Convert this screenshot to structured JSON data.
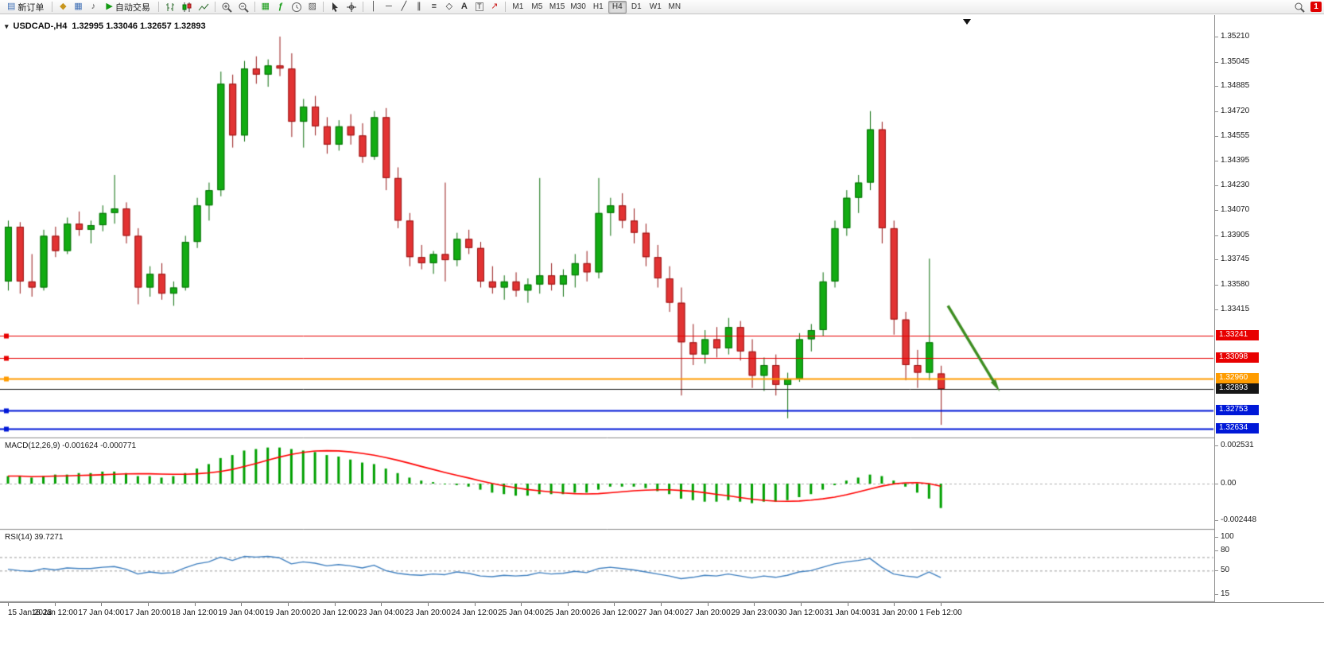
{
  "toolbar": {
    "new_order_label": "新订单",
    "autotrade_label": "自动交易",
    "timeframes": [
      "M1",
      "M5",
      "M15",
      "M30",
      "H1",
      "H4",
      "D1",
      "W1",
      "MN"
    ],
    "active_timeframe": "H4",
    "notification_count": "1",
    "icon_glyphs": {
      "new_order": "▤",
      "charts": "◆",
      "terminal": "▦",
      "news": "♪",
      "autotrade_play": "▶",
      "tile_windows": "▦",
      "indicators": "ƒ",
      "templates": "▨",
      "vertical_line": "│",
      "horizontal_line": "─",
      "trendline": "╱",
      "channel": "∥",
      "fibonacci": "≡",
      "shapes": "◇",
      "text": "A",
      "label": "T",
      "arrow_tool": "↗"
    }
  },
  "chart": {
    "symbol_period": "USDCAD-,H4",
    "ohlc": "1.32995 1.33046 1.32657 1.32893",
    "price_axis_labels": [
      "1.35210",
      "1.35045",
      "1.34885",
      "1.34720",
      "1.34555",
      "1.34395",
      "1.34230",
      "1.34070",
      "1.33905",
      "1.33745",
      "1.33580",
      "1.33415"
    ],
    "lines": [
      {
        "label": "1.33241",
        "value": 1.33241,
        "color": "#e80000",
        "width": 1,
        "handle": true
      },
      {
        "label": "1.33098",
        "value": 1.33098,
        "color": "#e80000",
        "width": 1,
        "handle": true
      },
      {
        "label": "1.32960",
        "value": 1.3296,
        "color": "#ff9c00",
        "width": 2,
        "handle": true
      },
      {
        "label": "1.32893",
        "value": 1.32893,
        "color": "#161616",
        "width": 1,
        "handle": false
      },
      {
        "label": "1.32753",
        "value": 1.32753,
        "color": "#0018d8",
        "width": 2,
        "handle": true
      },
      {
        "label": "1.32634",
        "value": 1.32634,
        "color": "#0018d8",
        "width": 2,
        "handle": true
      }
    ],
    "time_axis_labels": [
      "15 Jan 2023",
      "16 Jan 12:00",
      "17 Jan 04:00",
      "17 Jan 20:00",
      "18 Jan 12:00",
      "19 Jan 04:00",
      "19 Jan 20:00",
      "20 Jan 12:00",
      "23 Jan 04:00",
      "23 Jan 20:00",
      "24 Jan 12:00",
      "25 Jan 04:00",
      "25 Jan 20:00",
      "26 Jan 12:00",
      "27 Jan 04:00",
      "27 Jan 20:00",
      "29 Jan 23:00",
      "30 Jan 12:00",
      "31 Jan 04:00",
      "31 Jan 20:00",
      "1 Feb 12:00"
    ]
  },
  "macd": {
    "label": "MACD(12,26,9) -0.001624 -0.000771",
    "axis": [
      {
        "label": "0.002531",
        "value": 0.002531
      },
      {
        "label": "0.00",
        "value": 0
      },
      {
        "label": "-0.002448",
        "value": -0.002448
      }
    ]
  },
  "rsi": {
    "label": "RSI(14) 39.7271",
    "axis": [
      {
        "label": "100",
        "value": 100
      },
      {
        "label": "80",
        "value": 80
      },
      {
        "label": "50",
        "value": 50
      },
      {
        "label": "15",
        "value": 15
      }
    ],
    "levels": [
      70,
      50
    ]
  },
  "colors": {
    "candle_up": "#12ac12",
    "candle_up_edge": "#0a6e0a",
    "candle_down": "#e23333",
    "candle_down_edge": "#971717",
    "macd_histogram": "#00a000",
    "macd_signal": "#ff0000",
    "rsi_line": "#4080c0",
    "arrow": "#3e8e22"
  },
  "chart_data": {
    "type": "candlestick",
    "symbol": "USDCAD",
    "period": "H4",
    "last_ohlc": {
      "open": 1.32995,
      "high": 1.33046,
      "low": 1.32657,
      "close": 1.32893
    },
    "candles_ohlc": [
      [
        1.336,
        1.34,
        1.3354,
        1.3396
      ],
      [
        1.3396,
        1.3399,
        1.3352,
        1.336
      ],
      [
        1.336,
        1.3378,
        1.335,
        1.3356
      ],
      [
        1.3356,
        1.3394,
        1.3354,
        1.339
      ],
      [
        1.339,
        1.3396,
        1.3376,
        1.338
      ],
      [
        1.338,
        1.3402,
        1.3378,
        1.3398
      ],
      [
        1.3398,
        1.3406,
        1.339,
        1.3394
      ],
      [
        1.3394,
        1.34,
        1.3385,
        1.3397
      ],
      [
        1.3397,
        1.341,
        1.3393,
        1.3405
      ],
      [
        1.3405,
        1.343,
        1.3398,
        1.3408
      ],
      [
        1.3408,
        1.3412,
        1.3385,
        1.339
      ],
      [
        1.339,
        1.3395,
        1.3345,
        1.3356
      ],
      [
        1.3356,
        1.337,
        1.335,
        1.3365
      ],
      [
        1.3365,
        1.3372,
        1.3348,
        1.3352
      ],
      [
        1.3352,
        1.336,
        1.3344,
        1.3356
      ],
      [
        1.3356,
        1.339,
        1.3354,
        1.3386
      ],
      [
        1.3386,
        1.3415,
        1.3382,
        1.341
      ],
      [
        1.341,
        1.3425,
        1.34,
        1.342
      ],
      [
        1.342,
        1.3498,
        1.3416,
        1.349
      ],
      [
        1.349,
        1.3496,
        1.3448,
        1.3456
      ],
      [
        1.3456,
        1.3505,
        1.3452,
        1.35
      ],
      [
        1.35,
        1.3508,
        1.349,
        1.3496
      ],
      [
        1.3496,
        1.3506,
        1.3488,
        1.3502
      ],
      [
        1.3502,
        1.3521,
        1.3495,
        1.35
      ],
      [
        1.35,
        1.351,
        1.3455,
        1.3465
      ],
      [
        1.3465,
        1.348,
        1.3448,
        1.3475
      ],
      [
        1.3475,
        1.3482,
        1.3456,
        1.3462
      ],
      [
        1.3462,
        1.3468,
        1.3444,
        1.345
      ],
      [
        1.345,
        1.3466,
        1.3446,
        1.3462
      ],
      [
        1.3462,
        1.347,
        1.345,
        1.3456
      ],
      [
        1.3456,
        1.3464,
        1.3438,
        1.3442
      ],
      [
        1.3442,
        1.3472,
        1.344,
        1.3468
      ],
      [
        1.3468,
        1.3474,
        1.342,
        1.3428
      ],
      [
        1.3428,
        1.3435,
        1.3395,
        1.34
      ],
      [
        1.34,
        1.3405,
        1.337,
        1.3376
      ],
      [
        1.3376,
        1.3384,
        1.3368,
        1.3372
      ],
      [
        1.3372,
        1.338,
        1.3365,
        1.3378
      ],
      [
        1.3378,
        1.3425,
        1.336,
        1.3374
      ],
      [
        1.3374,
        1.3392,
        1.337,
        1.3388
      ],
      [
        1.3388,
        1.3394,
        1.3378,
        1.3382
      ],
      [
        1.3382,
        1.3386,
        1.3356,
        1.336
      ],
      [
        1.336,
        1.337,
        1.3352,
        1.3356
      ],
      [
        1.3356,
        1.3364,
        1.3348,
        1.336
      ],
      [
        1.336,
        1.3366,
        1.335,
        1.3354
      ],
      [
        1.3354,
        1.3362,
        1.3346,
        1.3358
      ],
      [
        1.3358,
        1.3428,
        1.3352,
        1.3364
      ],
      [
        1.3364,
        1.3372,
        1.3354,
        1.3358
      ],
      [
        1.3358,
        1.3368,
        1.335,
        1.3364
      ],
      [
        1.3364,
        1.3378,
        1.3356,
        1.3372
      ],
      [
        1.3372,
        1.338,
        1.336,
        1.3366
      ],
      [
        1.3366,
        1.3428,
        1.3362,
        1.3405
      ],
      [
        1.3405,
        1.3415,
        1.339,
        1.341
      ],
      [
        1.341,
        1.3418,
        1.3395,
        1.34
      ],
      [
        1.34,
        1.3408,
        1.3385,
        1.3392
      ],
      [
        1.3392,
        1.3398,
        1.337,
        1.3376
      ],
      [
        1.3376,
        1.3384,
        1.3356,
        1.3362
      ],
      [
        1.3362,
        1.337,
        1.334,
        1.3346
      ],
      [
        1.3346,
        1.3356,
        1.3285,
        1.332
      ],
      [
        1.332,
        1.3332,
        1.3305,
        1.3312
      ],
      [
        1.3312,
        1.3328,
        1.3306,
        1.3322
      ],
      [
        1.3322,
        1.333,
        1.331,
        1.3316
      ],
      [
        1.3316,
        1.3336,
        1.3312,
        1.333
      ],
      [
        1.333,
        1.3334,
        1.3308,
        1.3314
      ],
      [
        1.3314,
        1.3322,
        1.329,
        1.3298
      ],
      [
        1.3298,
        1.331,
        1.3288,
        1.3305
      ],
      [
        1.3305,
        1.3312,
        1.3285,
        1.3292
      ],
      [
        1.3292,
        1.33,
        1.327,
        1.3296
      ],
      [
        1.3296,
        1.3326,
        1.3294,
        1.3322
      ],
      [
        1.3322,
        1.3332,
        1.3314,
        1.3328
      ],
      [
        1.3328,
        1.3366,
        1.3324,
        1.336
      ],
      [
        1.336,
        1.34,
        1.3356,
        1.3395
      ],
      [
        1.3395,
        1.342,
        1.339,
        1.3415
      ],
      [
        1.3415,
        1.343,
        1.3405,
        1.3425
      ],
      [
        1.3425,
        1.3472,
        1.342,
        1.346
      ],
      [
        1.346,
        1.3465,
        1.3385,
        1.3395
      ],
      [
        1.3395,
        1.34,
        1.3325,
        1.3335
      ],
      [
        1.3335,
        1.334,
        1.3295,
        1.3305
      ],
      [
        1.3305,
        1.3315,
        1.329,
        1.33
      ],
      [
        1.33,
        1.3375,
        1.3295,
        1.332
      ],
      [
        1.32995,
        1.33046,
        1.32657,
        1.32893
      ]
    ],
    "indicators": {
      "macd": {
        "params": "12,26,9",
        "last_values": [
          -0.001624,
          -0.000771
        ],
        "histogram": [
          0.0005,
          0.0005,
          0.0004,
          0.0005,
          0.0006,
          0.0006,
          0.0007,
          0.0007,
          0.0008,
          0.0008,
          0.0007,
          0.0005,
          0.0005,
          0.0004,
          0.0005,
          0.0007,
          0.001,
          0.0013,
          0.0017,
          0.0019,
          0.0022,
          0.0023,
          0.0024,
          0.0024,
          0.0023,
          0.0022,
          0.0021,
          0.0019,
          0.0018,
          0.0016,
          0.0014,
          0.0013,
          0.001,
          0.0007,
          0.0004,
          0.0002,
          0.0001,
          0.0,
          -0.0001,
          -0.0002,
          -0.0004,
          -0.0006,
          -0.0007,
          -0.0008,
          -0.0008,
          -0.0007,
          -0.0007,
          -0.0007,
          -0.0006,
          -0.0006,
          -0.0004,
          -0.0002,
          -0.0002,
          -0.0002,
          -0.0003,
          -0.0005,
          -0.0007,
          -0.001,
          -0.0011,
          -0.0012,
          -0.0012,
          -0.0011,
          -0.0012,
          -0.0013,
          -0.0012,
          -0.0012,
          -0.0011,
          -0.0009,
          -0.0007,
          -0.0004,
          -0.0001,
          0.0002,
          0.0004,
          0.0006,
          0.0005,
          0.0002,
          -0.0002,
          -0.0006,
          -0.001,
          -0.001624
        ]
      },
      "rsi": {
        "params": "14",
        "last_value": 39.7271,
        "values": [
          52,
          50,
          49,
          53,
          51,
          54,
          53,
          53,
          55,
          56,
          52,
          45,
          48,
          46,
          47,
          54,
          60,
          63,
          70,
          65,
          71,
          70,
          71,
          69,
          60,
          63,
          61,
          57,
          59,
          57,
          54,
          58,
          50,
          46,
          44,
          43,
          45,
          44,
          48,
          46,
          42,
          41,
          43,
          42,
          43,
          47,
          45,
          46,
          49,
          47,
          53,
          55,
          53,
          51,
          48,
          45,
          42,
          38,
          40,
          43,
          42,
          45,
          42,
          39,
          42,
          40,
          43,
          48,
          50,
          55,
          60,
          63,
          65,
          68,
          55,
          45,
          42,
          40,
          48,
          39.7271
        ]
      }
    },
    "horizontal_lines": [
      1.33241,
      1.33098,
      1.3296,
      1.32893,
      1.32753,
      1.32634
    ],
    "arrow": {
      "start_bar_offset": 0.6,
      "start_price": 1.3344,
      "end_bar_offset": 4.6,
      "end_price": 1.32925
    }
  }
}
